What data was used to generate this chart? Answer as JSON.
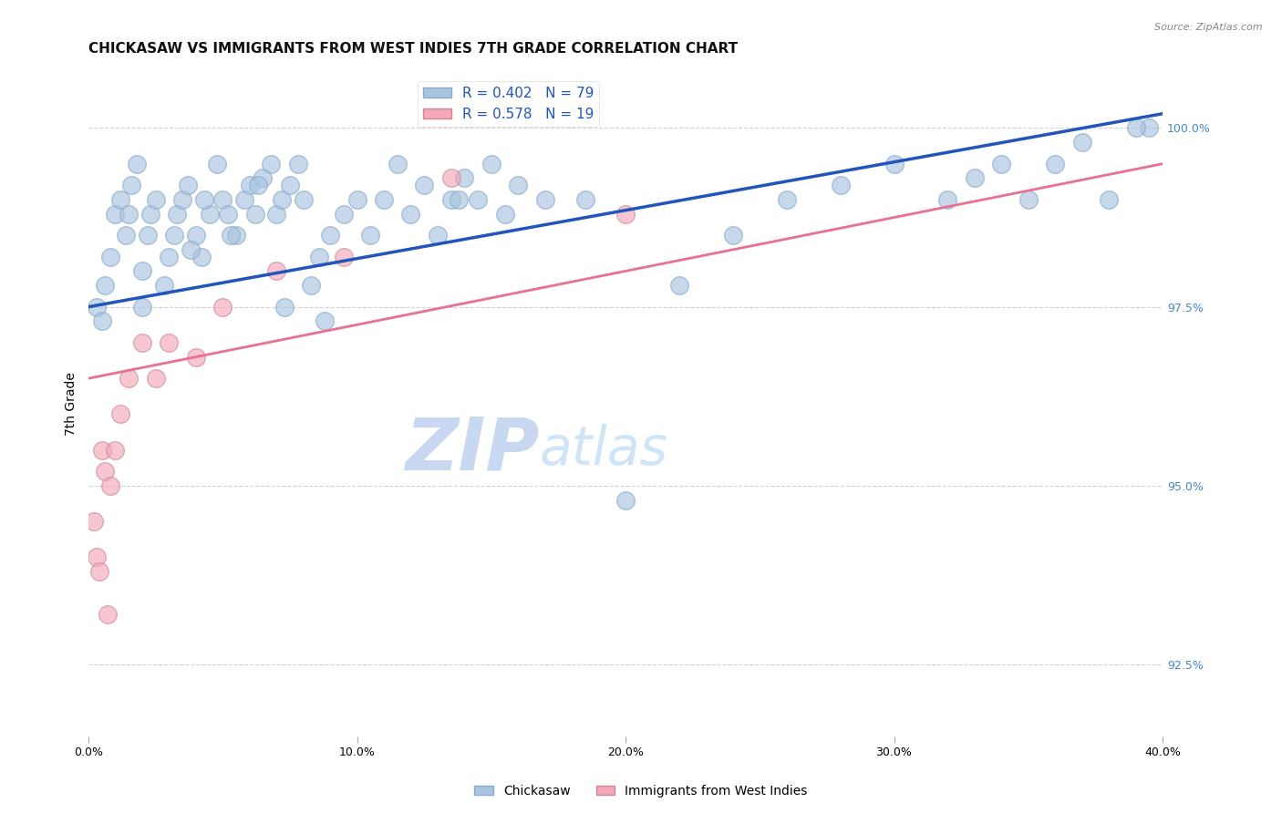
{
  "title": "CHICKASAW VS IMMIGRANTS FROM WEST INDIES 7TH GRADE CORRELATION CHART",
  "source": "Source: ZipAtlas.com",
  "ylabel": "7th Grade",
  "x_min": 0.0,
  "x_max": 40.0,
  "y_min": 91.5,
  "y_max": 100.8,
  "y_ticks": [
    92.5,
    95.0,
    97.5,
    100.0
  ],
  "x_ticks": [
    0.0,
    10.0,
    20.0,
    30.0,
    40.0
  ],
  "blue_color": "#a8c4e0",
  "pink_color": "#f4a8b8",
  "blue_line_color": "#2255bb",
  "pink_line_color": "#e87090",
  "watermark_zip": "ZIP",
  "watermark_atlas": "atlas",
  "watermark_color": "#ddeeff",
  "title_fontsize": 11,
  "axis_label_fontsize": 10,
  "tick_fontsize": 9,
  "blue_scatter_x": [
    0.3,
    0.5,
    0.6,
    0.8,
    1.0,
    1.2,
    1.4,
    1.5,
    1.6,
    1.8,
    2.0,
    2.2,
    2.3,
    2.5,
    2.8,
    3.0,
    3.2,
    3.3,
    3.5,
    3.7,
    4.0,
    4.2,
    4.5,
    4.8,
    5.0,
    5.2,
    5.5,
    5.8,
    6.0,
    6.2,
    6.5,
    6.8,
    7.0,
    7.2,
    7.5,
    7.8,
    8.0,
    8.3,
    8.6,
    9.0,
    9.5,
    10.0,
    10.5,
    11.0,
    11.5,
    12.0,
    12.5,
    13.0,
    13.5,
    14.0,
    14.5,
    15.0,
    15.5,
    16.0,
    17.0,
    18.5,
    20.0,
    22.0,
    24.0,
    26.0,
    28.0,
    30.0,
    32.0,
    33.0,
    34.0,
    35.0,
    36.0,
    37.0,
    38.0,
    39.5,
    2.0,
    3.8,
    4.3,
    5.3,
    6.3,
    7.3,
    8.8,
    13.8,
    39.0
  ],
  "blue_scatter_y": [
    97.5,
    97.3,
    97.8,
    98.2,
    98.8,
    99.0,
    98.5,
    98.8,
    99.2,
    99.5,
    98.0,
    98.5,
    98.8,
    99.0,
    97.8,
    98.2,
    98.5,
    98.8,
    99.0,
    99.2,
    98.5,
    98.2,
    98.8,
    99.5,
    99.0,
    98.8,
    98.5,
    99.0,
    99.2,
    98.8,
    99.3,
    99.5,
    98.8,
    99.0,
    99.2,
    99.5,
    99.0,
    97.8,
    98.2,
    98.5,
    98.8,
    99.0,
    98.5,
    99.0,
    99.5,
    98.8,
    99.2,
    98.5,
    99.0,
    99.3,
    99.0,
    99.5,
    98.8,
    99.2,
    99.0,
    99.0,
    94.8,
    97.8,
    98.5,
    99.0,
    99.2,
    99.5,
    99.0,
    99.3,
    99.5,
    99.0,
    99.5,
    99.8,
    99.0,
    100.0,
    97.5,
    98.3,
    99.0,
    98.5,
    99.2,
    97.5,
    97.3,
    99.0,
    100.0
  ],
  "pink_scatter_x": [
    0.2,
    0.3,
    0.4,
    0.5,
    0.6,
    0.8,
    1.0,
    1.2,
    1.5,
    2.0,
    2.5,
    3.0,
    4.0,
    5.0,
    7.0,
    9.5,
    13.5,
    20.0,
    0.7
  ],
  "pink_scatter_y": [
    94.5,
    94.0,
    93.8,
    95.5,
    95.2,
    95.0,
    95.5,
    96.0,
    96.5,
    97.0,
    96.5,
    97.0,
    96.8,
    97.5,
    98.0,
    98.2,
    99.3,
    98.8,
    93.2
  ],
  "blue_trend_x": [
    0.0,
    40.0
  ],
  "blue_trend_y": [
    97.5,
    100.2
  ],
  "pink_trend_x": [
    0.0,
    40.0
  ],
  "pink_trend_y": [
    96.5,
    99.5
  ]
}
